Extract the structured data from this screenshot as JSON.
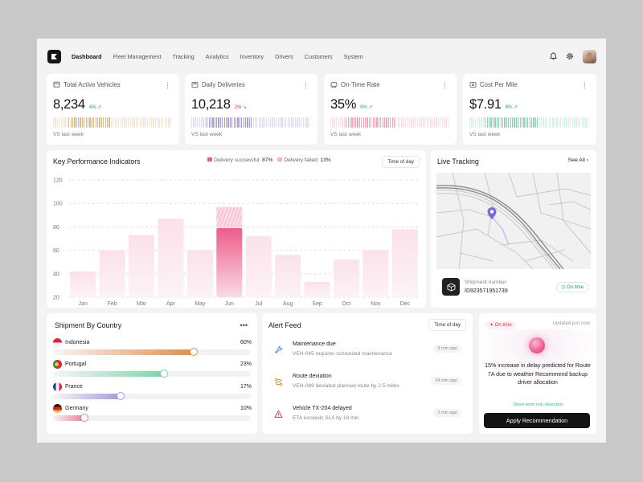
{
  "nav": {
    "links": [
      "Dashboard",
      "Fleet Management",
      "Tracking",
      "Analytics",
      "Inventory",
      "Drivers",
      "Customers",
      "System"
    ],
    "active": "Dashboard",
    "icons": [
      "bell-icon",
      "gear-icon"
    ]
  },
  "stats": [
    {
      "title": "Total Active Vehicles",
      "value": "8,234",
      "change": "4%",
      "trend": "up",
      "footer": "VS last week",
      "color": "#d9b98a",
      "icon": "vehicle-icon"
    },
    {
      "title": "Daily Deliveries",
      "value": "10,218",
      "change": "2%",
      "trend": "down",
      "footer": "VS last week",
      "color": "#a79ad8",
      "icon": "box-icon"
    },
    {
      "title": "On-Time Rate",
      "value": "35%",
      "change": "9%",
      "trend": "up",
      "footer": "VS last week",
      "color": "#f0a5b8",
      "icon": "clock-icon"
    },
    {
      "title": "Cost Per Mile",
      "value": "$7.91",
      "change": "8%",
      "trend": "up",
      "footer": "VS last week",
      "color": "#8fd3b4",
      "icon": "coin-icon"
    }
  ],
  "kpi": {
    "title": "Key Performance Indicators",
    "legend_success_label": "Delivery successful:",
    "legend_success_value": "87%",
    "legend_failed_label": "Delivery failed:",
    "legend_failed_value": "13%",
    "filter": "Time of day"
  },
  "chart_data": {
    "type": "bar",
    "categories": [
      "Jan",
      "Feb",
      "Mar",
      "Apr",
      "May",
      "Jun",
      "Jul",
      "Aug",
      "Sep",
      "Oct",
      "Nov",
      "Dec"
    ],
    "series": [
      {
        "name": "Delivery successful",
        "values": [
          42,
          60,
          73,
          87,
          60,
          79,
          72,
          56,
          33,
          52,
          60,
          78
        ]
      },
      {
        "name": "Delivery failed",
        "values": [
          0,
          0,
          0,
          0,
          0,
          18,
          0,
          0,
          0,
          0,
          0,
          0
        ]
      }
    ],
    "highlight": "Jun",
    "ylim": [
      20,
      120
    ],
    "yticks": [
      120,
      100,
      80,
      60,
      40,
      20
    ],
    "grid": true,
    "xlabel": "",
    "ylabel": ""
  },
  "live": {
    "title": "Live Tracking",
    "see_all": "See All",
    "shipment_label": "Shipment number",
    "shipment_id": "ID923571951739",
    "status": "On time"
  },
  "countries": {
    "title": "Shipment By Country",
    "items": [
      {
        "name": "Indonesia",
        "pct": "60%",
        "value": 0.71,
        "color": "#f08a3c",
        "flag": "indonesia-flag"
      },
      {
        "name": "Portugal",
        "pct": "23%",
        "value": 0.56,
        "color": "#7fd3ab",
        "flag": "portugal-flag"
      },
      {
        "name": "France",
        "pct": "17%",
        "value": 0.34,
        "color": "#a99ae0",
        "flag": "france-flag"
      },
      {
        "name": "Germany",
        "pct": "10%",
        "value": 0.16,
        "color": "#f27b97",
        "flag": "germany-flag"
      }
    ]
  },
  "alerts": {
    "title": "Alert Feed",
    "filter": "Time of day",
    "items": [
      {
        "title": "Maintenance due",
        "desc": "VEH-045 requires scheduled maintenance",
        "time": "9 min ago",
        "icon": "wrench-icon"
      },
      {
        "title": "Route deviation",
        "desc": "VEH-089 deviated planned route by 2.5 miles",
        "time": "24 min ago",
        "icon": "route-icon"
      },
      {
        "title": "Vehicle TX-204 delayed",
        "desc": "ETA exceeds SLA by 18 min",
        "time": "2 min ago",
        "icon": "warning-icon"
      }
    ]
  },
  "reco": {
    "badge": "On time",
    "updated": "Updated just now",
    "text": "15% increase in delay predicted for Route 7A due to weather Recommend backup driver allocation",
    "risk": "Short-term risk detected",
    "button": "Apply Recommendation"
  }
}
